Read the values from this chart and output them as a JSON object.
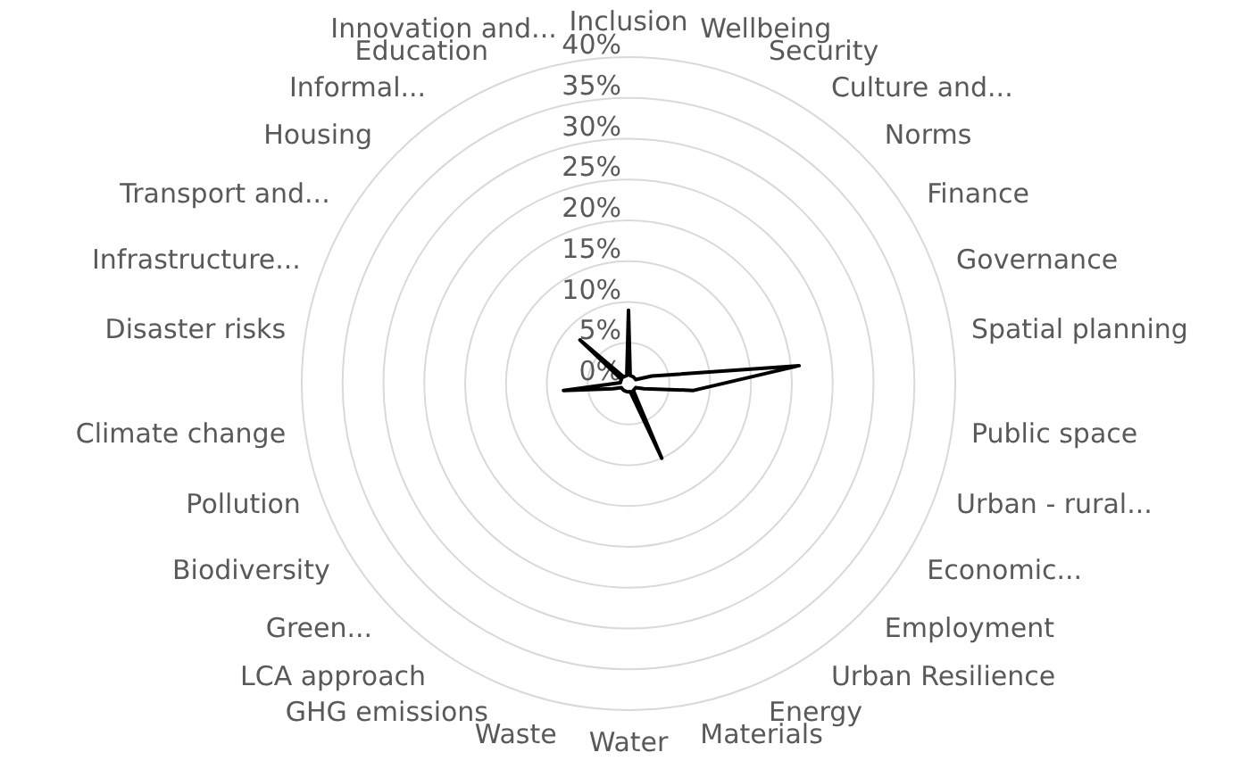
{
  "chart_data": {
    "type": "radar",
    "categories": [
      "Inclusion",
      "Wellbeing",
      "Security",
      "Culture and...",
      "Norms",
      "Finance",
      "Governance",
      "Spatial planning",
      "Public space",
      "Urban - rural...",
      "Economic...",
      "Employment",
      "Urban Resilience",
      "Energy",
      "Materials",
      "Water",
      "Waste",
      "GHG emissions",
      "LCA approach",
      "Green...",
      "Biodiversity",
      "Pollution",
      "Climate change",
      "Disaster risks",
      "Infrastructure...",
      "Transport and...",
      "Housing",
      "Informal...",
      "Education",
      "Innovation and..."
    ],
    "series": [
      {
        "color": "#000000",
        "values": [
          9,
          1,
          1,
          1,
          1,
          1,
          3,
          21,
          8,
          2,
          1,
          1,
          1,
          10,
          1,
          1,
          1,
          1,
          1,
          1,
          1,
          2,
          8,
          1,
          1,
          1,
          8,
          1,
          1,
          1
        ]
      }
    ],
    "ylim": [
      0,
      40
    ],
    "yticks": [
      {
        "value": 0,
        "label": "0%"
      },
      {
        "value": 5,
        "label": "5%"
      },
      {
        "value": 10,
        "label": "10%"
      },
      {
        "value": 15,
        "label": "15%"
      },
      {
        "value": 20,
        "label": "20%"
      },
      {
        "value": 25,
        "label": "25%"
      },
      {
        "value": 30,
        "label": "30%"
      },
      {
        "value": 35,
        "label": "35%"
      },
      {
        "value": 40,
        "label": "40%"
      }
    ],
    "grid": true,
    "marker": "none",
    "legend": false
  }
}
